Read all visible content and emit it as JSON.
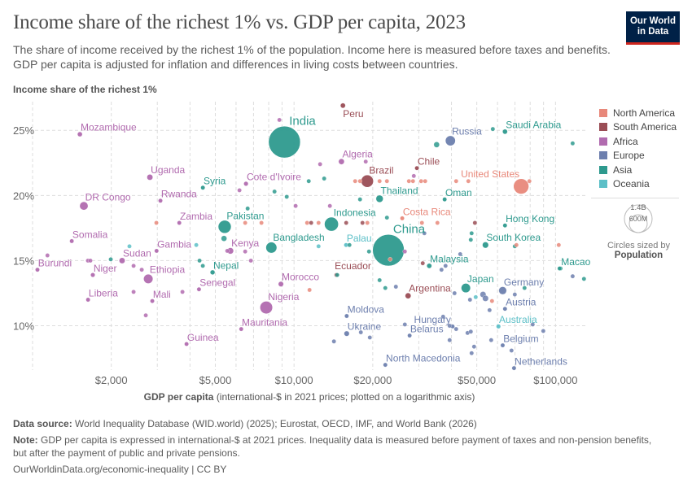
{
  "header": {
    "title": "Income share of the richest 1% vs. GDP per capita, 2023",
    "subtitle": "The share of income received by the richest 1% of the population. Income here is measured before taxes and benefits. GDP per capita is adjusted for inflation and differences in living costs between countries.",
    "logo_line1": "Our World",
    "logo_line2": "in Data"
  },
  "footer": {
    "source_label": "Data source:",
    "source_text": "World Inequality Database (WID.world) (2025); Eurostat, OECD, IMF, and World Bank (2026)",
    "note_label": "Note:",
    "note_text": "GDP per capita is expressed in international-$ at 2021 prices. Inequality data is measured before payment of taxes and non-pension benefits, but after the payment of public and private pensions.",
    "url": "OurWorldinData.org/economic-inequality | CC BY"
  },
  "legend": {
    "regions": [
      {
        "key": "NA",
        "name": "North America",
        "color": "#e8887a"
      },
      {
        "key": "SA",
        "name": "South America",
        "color": "#9a4d55"
      },
      {
        "key": "AF",
        "name": "Africa",
        "color": "#b16baf"
      },
      {
        "key": "EU",
        "name": "Europe",
        "color": "#6d7fae"
      },
      {
        "key": "AS",
        "name": "Asia",
        "color": "#2e9a8e"
      },
      {
        "key": "OC",
        "name": "Oceania",
        "color": "#5cbfc7"
      }
    ],
    "size_big": "1.4B",
    "size_small": "600M",
    "size_caption": "Circles sized by",
    "size_variable": "Population"
  },
  "chart_data": {
    "type": "scatter",
    "title": "Income share of the richest 1% vs. GDP per capita, 2023",
    "ylabel": "Income share of the richest 1%",
    "xlabel_bold": "GDP per capita",
    "xlabel_rest": "(international-$ in 2021 prices; plotted on a logarithmic axis)",
    "x_scale": "log",
    "xlim": [
      1000,
      131000
    ],
    "ylim": [
      6.6,
      27.2
    ],
    "x_ticks": [
      {
        "v": 2000,
        "label": "$2,000"
      },
      {
        "v": 5000,
        "label": "$5,000"
      },
      {
        "v": 10000,
        "label": "$10,000"
      },
      {
        "v": 20000,
        "label": "$20,000"
      },
      {
        "v": 50000,
        "label": "$50,000"
      },
      {
        "v": 100000,
        "label": "$100,000"
      }
    ],
    "y_ticks": [
      {
        "v": 10,
        "label": "10%"
      },
      {
        "v": 15,
        "label": "15%"
      },
      {
        "v": 20,
        "label": "20%"
      },
      {
        "v": 25,
        "label": "25%"
      }
    ],
    "grid": true,
    "legend_position": "right",
    "fields": [
      "label",
      "region",
      "gdp_per_capita",
      "top1_share",
      "population_millions"
    ],
    "points": [
      [
        "India",
        "AS",
        9190,
        24.1,
        1430
      ],
      [
        "China",
        "AS",
        22960,
        15.8,
        1410
      ],
      [
        "United States",
        "NA",
        73900,
        20.7,
        335
      ],
      [
        "Brazil",
        "SA",
        19060,
        21.1,
        216
      ],
      [
        "Pakistan",
        "AS",
        5430,
        17.6,
        240
      ],
      [
        "Indonesia",
        "AS",
        13900,
        17.8,
        278
      ],
      [
        "Nigeria",
        "AF",
        7830,
        11.4,
        227
      ],
      [
        "Bangladesh",
        "AS",
        8190,
        16.0,
        172
      ],
      [
        "Russia",
        "EU",
        39630,
        24.2,
        144
      ],
      [
        "Ethiopia",
        "AF",
        2770,
        13.6,
        126
      ],
      [
        "Japan",
        "AS",
        45400,
        12.9,
        124
      ],
      [
        "DR Congo",
        "AF",
        1571,
        19.2,
        102
      ],
      [
        "Germany",
        "EU",
        62800,
        12.7,
        84
      ],
      [
        "Thailand",
        "AS",
        21240,
        19.75,
        72
      ],
      [
        "Mozambique",
        "AF",
        1517,
        24.7,
        33
      ],
      [
        "Peru",
        "SA",
        15380,
        26.9,
        34
      ],
      [
        "Saudi Arabia",
        "AS",
        64100,
        24.9,
        33
      ],
      [
        "Uganda",
        "AF",
        2810,
        21.4,
        48
      ],
      [
        "Syria",
        "AS",
        4480,
        20.6,
        23
      ],
      [
        "Cote d'Ivoire",
        "AF",
        6550,
        20.9,
        28
      ],
      [
        "Algeria",
        "AF",
        15180,
        22.6,
        46
      ],
      [
        "Chile",
        "SA",
        29500,
        22.1,
        20
      ],
      [
        "Rwanda",
        "AF",
        3083,
        19.6,
        14
      ],
      [
        "Oman",
        "AS",
        37670,
        19.7,
        5
      ],
      [
        "Zambia",
        "AF",
        3640,
        17.9,
        20
      ],
      [
        "Costa Rica",
        "NA",
        25930,
        18.25,
        5
      ],
      [
        "Hong Kong",
        "AS",
        64100,
        17.7,
        7
      ],
      [
        "Somalia",
        "AF",
        1412,
        16.5,
        18
      ],
      [
        "Gambia",
        "AF",
        2980,
        15.75,
        3
      ],
      [
        "Kenya",
        "AF",
        5710,
        15.75,
        55
      ],
      [
        "Palau",
        "OC",
        15810,
        16.2,
        0.02
      ],
      [
        "South Korea",
        "AS",
        53970,
        16.2,
        52
      ],
      [
        "Sudan",
        "AF",
        2200,
        15.0,
        48
      ],
      [
        "Burundi",
        "AF",
        1044,
        14.3,
        13
      ],
      [
        "Niger",
        "AF",
        1700,
        13.9,
        27
      ],
      [
        "Nepal",
        "AS",
        4880,
        14.1,
        31
      ],
      [
        "Malaysia",
        "AS",
        32900,
        14.6,
        34
      ],
      [
        "Macao",
        "AS",
        104500,
        14.4,
        0.7
      ],
      [
        "Ecuador",
        "SA",
        14520,
        13.9,
        18
      ],
      [
        "Argentina",
        "SA",
        27300,
        12.3,
        46
      ],
      [
        "Morocco",
        "AF",
        8910,
        13.2,
        38
      ],
      [
        "Senegal",
        "AF",
        4330,
        12.8,
        18
      ],
      [
        "Liberia",
        "AF",
        1630,
        12.0,
        5
      ],
      [
        "Mali",
        "AF",
        2870,
        11.9,
        23
      ],
      [
        "Austria",
        "EU",
        64100,
        11.3,
        9
      ],
      [
        "Moldova",
        "EU",
        15900,
        10.75,
        2.5
      ],
      [
        "Hungary",
        "EU",
        40400,
        9.95,
        10
      ],
      [
        "Australia",
        "OC",
        60500,
        9.95,
        27
      ],
      [
        "Mauritania",
        "AF",
        6280,
        9.75,
        5
      ],
      [
        "Ukraine",
        "EU",
        15900,
        9.4,
        38
      ],
      [
        "Belarus",
        "EU",
        27670,
        9.25,
        9
      ],
      [
        "Belgium",
        "EU",
        62800,
        8.5,
        12
      ],
      [
        "Guinea",
        "AF",
        3880,
        8.6,
        14
      ],
      [
        "North Macedonia",
        "EU",
        22340,
        7.0,
        2
      ],
      [
        "Netherlands",
        "EU",
        69400,
        6.75,
        18
      ],
      [
        "",
        "AF",
        8790,
        25.8,
        8
      ],
      [
        "",
        "NA",
        2975,
        17.9,
        5
      ],
      [
        "",
        "NA",
        6504,
        17.9,
        5
      ],
      [
        "",
        "NA",
        7505,
        17.9,
        5
      ],
      [
        "",
        "AF",
        6184,
        20.4,
        8
      ],
      [
        "",
        "AS",
        6646,
        19.0,
        5
      ],
      [
        "",
        "AS",
        8420,
        20.3,
        5
      ],
      [
        "",
        "AS",
        9376,
        19.9,
        5
      ],
      [
        "",
        "AS",
        5397,
        16.7,
        45
      ],
      [
        "",
        "AF",
        12580,
        22.4,
        8
      ],
      [
        "",
        "AF",
        18800,
        22.6,
        5
      ],
      [
        "",
        "AS",
        35100,
        23.9,
        45
      ],
      [
        "",
        "AS",
        57580,
        25.1,
        3
      ],
      [
        "",
        "AS",
        116300,
        24.0,
        3
      ],
      [
        "",
        "AS",
        11380,
        21.1,
        5
      ],
      [
        "",
        "AS",
        13040,
        21.3,
        5
      ],
      [
        "",
        "NA",
        17130,
        21.1,
        5
      ],
      [
        "",
        "NA",
        17880,
        21.1,
        5
      ],
      [
        "",
        "NA",
        21240,
        21.1,
        5
      ],
      [
        "",
        "NA",
        22660,
        21.1,
        5
      ],
      [
        "",
        "NA",
        27500,
        21.1,
        5
      ],
      [
        "",
        "NA",
        28500,
        21.1,
        5
      ],
      [
        "",
        "NA",
        30620,
        21.1,
        5
      ],
      [
        "",
        "NA",
        31740,
        21.1,
        5
      ],
      [
        "",
        "AF",
        28710,
        21.5,
        8
      ],
      [
        "",
        "NA",
        41690,
        21.1,
        5
      ],
      [
        "",
        "NA",
        46420,
        21.1,
        5
      ],
      [
        "",
        "NA",
        79450,
        21.1,
        5
      ],
      [
        "",
        "AS",
        17880,
        19.7,
        5
      ],
      [
        "",
        "AF",
        10140,
        19.2,
        5
      ],
      [
        "",
        "AF",
        13710,
        19.2,
        20
      ],
      [
        "",
        "NA",
        11220,
        17.9,
        5
      ],
      [
        "",
        "SA",
        11630,
        17.9,
        5
      ],
      [
        "",
        "NA",
        12410,
        17.9,
        5
      ],
      [
        "",
        "SA",
        15830,
        17.9,
        5
      ],
      [
        "",
        "SA",
        18270,
        17.9,
        14
      ],
      [
        "",
        "NA",
        19070,
        17.9,
        5
      ],
      [
        "",
        "AS",
        22660,
        18.3,
        5
      ],
      [
        "",
        "NA",
        30840,
        17.9,
        5
      ],
      [
        "",
        "NA",
        35350,
        17.9,
        5
      ],
      [
        "",
        "SA",
        49170,
        17.9,
        5
      ],
      [
        "",
        "EU",
        31510,
        17.1,
        5
      ],
      [
        "",
        "AS",
        47770,
        17.1,
        5
      ],
      [
        "",
        "AS",
        47430,
        16.6,
        5
      ],
      [
        "",
        "AF",
        1140,
        15.4,
        8
      ],
      [
        "",
        "AF",
        1628,
        15.0,
        8
      ],
      [
        "",
        "AF",
        1664,
        15.0,
        8
      ],
      [
        "",
        "AS",
        1991,
        15.1,
        20
      ],
      [
        "",
        "OC",
        2347,
        16.1,
        1
      ],
      [
        "",
        "AF",
        2434,
        14.6,
        8
      ],
      [
        "",
        "AF",
        2615,
        14.3,
        8
      ],
      [
        "",
        "OC",
        4228,
        16.2,
        1
      ],
      [
        "",
        "AS",
        4351,
        15.0,
        5
      ],
      [
        "",
        "AS",
        4478,
        14.6,
        5
      ],
      [
        "",
        "AF",
        5553,
        15.75,
        8
      ],
      [
        "",
        "AF",
        6504,
        15.7,
        8
      ],
      [
        "",
        "AF",
        6838,
        15.0,
        20
      ],
      [
        "",
        "OC",
        12410,
        16.1,
        1
      ],
      [
        "",
        "AF",
        2434,
        12.6,
        8
      ],
      [
        "",
        "AF",
        3743,
        12.6,
        8
      ],
      [
        "",
        "AF",
        2710,
        10.8,
        8
      ],
      [
        "",
        "NA",
        11460,
        12.75,
        3
      ],
      [
        "",
        "AS",
        16290,
        16.2,
        5
      ],
      [
        "",
        "AS",
        19350,
        15.7,
        5
      ],
      [
        "",
        "AF",
        26530,
        15.7,
        5
      ],
      [
        "",
        "NA",
        23320,
        15.1,
        3
      ],
      [
        "",
        "EU",
        43210,
        15.5,
        5
      ],
      [
        "",
        "AS",
        69870,
        16.1,
        5
      ],
      [
        "",
        "NA",
        70880,
        16.2,
        3
      ],
      [
        "",
        "NA",
        102900,
        16.2,
        3
      ],
      [
        "",
        "SA",
        31060,
        14.8,
        3
      ],
      [
        "",
        "EU",
        37970,
        14.6,
        5
      ],
      [
        "",
        "EU",
        36640,
        14.3,
        5
      ],
      [
        "",
        "AS",
        14630,
        13.9,
        5
      ],
      [
        "",
        "AS",
        103600,
        14.4,
        3
      ],
      [
        "",
        "EU",
        116300,
        13.8,
        5
      ],
      [
        "",
        "AS",
        128500,
        13.6,
        5
      ],
      [
        "",
        "AS",
        21240,
        13.5,
        5
      ],
      [
        "",
        "AS",
        22340,
        12.9,
        5
      ],
      [
        "",
        "EU",
        24520,
        13.0,
        5
      ],
      [
        "",
        "EU",
        41090,
        12.5,
        5
      ],
      [
        "",
        "OC",
        49520,
        12.2,
        3
      ],
      [
        "",
        "EU",
        52810,
        12.4,
        50
      ],
      [
        "",
        "EU",
        53970,
        12.1,
        50
      ],
      [
        "",
        "EU",
        47090,
        12.0,
        25
      ],
      [
        "",
        "NA",
        57170,
        11.9,
        25
      ],
      [
        "",
        "EU",
        69870,
        12.4,
        5
      ],
      [
        "",
        "AS",
        76140,
        12.9,
        3
      ],
      [
        "",
        "EU",
        55950,
        11.2,
        5
      ],
      [
        "",
        "EU",
        37170,
        10.7,
        5
      ],
      [
        "",
        "EU",
        26530,
        10.1,
        5
      ],
      [
        "",
        "EU",
        39360,
        10.0,
        5
      ],
      [
        "",
        "EU",
        41690,
        9.75,
        5
      ],
      [
        "",
        "EU",
        46080,
        9.45,
        5
      ],
      [
        "",
        "EU",
        47430,
        9.55,
        5
      ],
      [
        "",
        "EU",
        18010,
        9.5,
        5
      ],
      [
        "",
        "EU",
        19490,
        9.1,
        5
      ],
      [
        "",
        "EU",
        14210,
        8.8,
        5
      ],
      [
        "",
        "EU",
        39360,
        8.9,
        5
      ],
      [
        "",
        "EU",
        56760,
        8.9,
        5
      ],
      [
        "",
        "EU",
        89800,
        9.6,
        5
      ],
      [
        "",
        "EU",
        81810,
        10.1,
        5
      ],
      [
        "",
        "EU",
        48820,
        8.4,
        5
      ],
      [
        "",
        "EU",
        47770,
        7.9,
        5
      ],
      [
        "",
        "EU",
        67880,
        8.1,
        5
      ]
    ]
  }
}
